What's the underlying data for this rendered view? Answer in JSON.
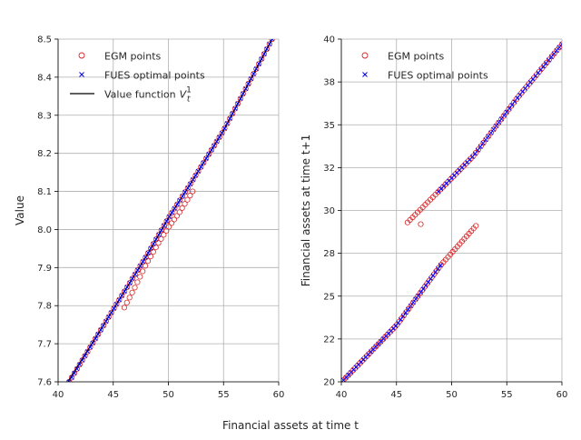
{
  "figure": {
    "shared_xlabel": "Financial assets at time t"
  },
  "colors": {
    "egm": "#d62728",
    "fues": "#0000ff",
    "vf": "#000000",
    "grid": "#b0b0b0"
  },
  "chart_data": [
    {
      "type": "scatter",
      "title": "",
      "xlabel": "",
      "ylabel": "Value",
      "xlim": [
        40,
        60
      ],
      "ylim": [
        7.6,
        8.5
      ],
      "xticks": [
        40,
        45,
        50,
        55,
        60
      ],
      "yticks": [
        7.6,
        7.7,
        7.8,
        7.9,
        8.0,
        8.1,
        8.2,
        8.3,
        8.4,
        8.5
      ],
      "xtick_labels": [
        "40",
        "45",
        "50",
        "55",
        "60"
      ],
      "ytick_labels": [
        "7.6",
        "7.7",
        "7.8",
        "7.9",
        "8.0",
        "8.1",
        "8.2",
        "8.3",
        "8.4",
        "8.5"
      ],
      "grid": true,
      "legend_position": "top-left",
      "legend": [
        {
          "label": "EGM points",
          "marker": "circle"
        },
        {
          "label": "FUES optimal points",
          "marker": "x"
        },
        {
          "label": "Value function",
          "label_math": "V",
          "label_sup": "1",
          "label_sub": "t",
          "marker": "line"
        }
      ],
      "series": [
        {
          "name": "Value function",
          "kind": "line",
          "x": [
            40.9,
            45.0,
            48.0,
            50.0,
            52.0,
            55.0,
            59.4
          ],
          "y": [
            7.6,
            7.79,
            7.93,
            8.03,
            8.12,
            8.26,
            8.5
          ]
        },
        {
          "name": "FUES optimal points",
          "kind": "x-markers",
          "segments": [
            {
              "x_start": 41.0,
              "x_end": 59.4,
              "count": 78,
              "y_at_x": [
                [
                  41.0,
                  7.6
                ],
                [
                  45.0,
                  7.79
                ],
                [
                  48.0,
                  7.93
                ],
                [
                  50.0,
                  8.03
                ],
                [
                  52.0,
                  8.12
                ],
                [
                  55.0,
                  8.26
                ],
                [
                  59.4,
                  8.5
                ]
              ]
            }
          ]
        },
        {
          "name": "EGM points",
          "kind": "circle-markers",
          "segments": [
            {
              "x_start": 41.0,
              "x_end": 59.4,
              "count": 78,
              "y_at_x": [
                [
                  41.0,
                  7.6
                ],
                [
                  45.0,
                  7.79
                ],
                [
                  48.0,
                  7.93
                ],
                [
                  50.0,
                  8.03
                ],
                [
                  52.0,
                  8.12
                ],
                [
                  55.0,
                  8.26
                ],
                [
                  59.4,
                  8.5
                ]
              ]
            },
            {
              "x_start": 46.0,
              "x_end": 52.2,
              "count": 27,
              "y_at_x": [
                [
                  46.0,
                  7.795
                ],
                [
                  47.0,
                  7.85
                ],
                [
                  48.0,
                  7.91
                ],
                [
                  49.0,
                  7.96
                ],
                [
                  50.0,
                  8.005
                ],
                [
                  51.0,
                  8.045
                ],
                [
                  52.2,
                  8.1
                ]
              ]
            }
          ]
        }
      ]
    },
    {
      "type": "scatter",
      "title": "",
      "xlabel": "",
      "ylabel": "Financial assets at time t+1",
      "xlim": [
        40,
        60
      ],
      "ylim": [
        20,
        40
      ],
      "xticks": [
        40,
        45,
        50,
        55,
        60
      ],
      "yticks": [
        20,
        22.5,
        25,
        27.5,
        30,
        32.5,
        35,
        37.5,
        40
      ],
      "xtick_labels": [
        "40",
        "45",
        "50",
        "55",
        "60"
      ],
      "ytick_labels": [
        "20",
        "22",
        "25",
        "28",
        "30",
        "32",
        "35",
        "38",
        "40"
      ],
      "grid": true,
      "legend_position": "top-left",
      "legend": [
        {
          "label": "EGM points",
          "marker": "circle"
        },
        {
          "label": "FUES optimal points",
          "marker": "x"
        }
      ],
      "series": [
        {
          "name": "FUES optimal points",
          "kind": "x-markers",
          "segments": [
            {
              "x_start": 40.2,
              "x_end": 49.0,
              "count": 40,
              "y_at_x": [
                [
                  40.2,
                  20.1
                ],
                [
                  45.0,
                  23.3
                ],
                [
                  49.0,
                  26.8
                ]
              ]
            },
            {
              "x_start": 48.8,
              "x_end": 60.0,
              "count": 48,
              "y_at_x": [
                [
                  48.8,
                  31.1
                ],
                [
                  52.0,
                  33.2
                ],
                [
                  56.0,
                  36.6
                ],
                [
                  60.0,
                  39.7
                ]
              ]
            }
          ]
        },
        {
          "name": "EGM points",
          "kind": "circle-markers",
          "segments": [
            {
              "x_start": 40.2,
              "x_end": 52.2,
              "count": 58,
              "y_at_x": [
                [
                  40.2,
                  20.1
                ],
                [
                  45.0,
                  23.3
                ],
                [
                  49.0,
                  26.8
                ],
                [
                  52.2,
                  29.1
                ]
              ]
            },
            {
              "x_start": 46.0,
              "x_end": 60.0,
              "count": 62,
              "y_at_x": [
                [
                  46.0,
                  29.3
                ],
                [
                  48.8,
                  31.1
                ],
                [
                  52.0,
                  33.2
                ],
                [
                  56.0,
                  36.6
                ],
                [
                  60.0,
                  39.7
                ]
              ]
            },
            {
              "x_start": 47.2,
              "x_end": 47.2,
              "count": 1,
              "y_at_x": [
                [
                  47.2,
                  29.2
                ]
              ]
            }
          ]
        }
      ]
    }
  ]
}
